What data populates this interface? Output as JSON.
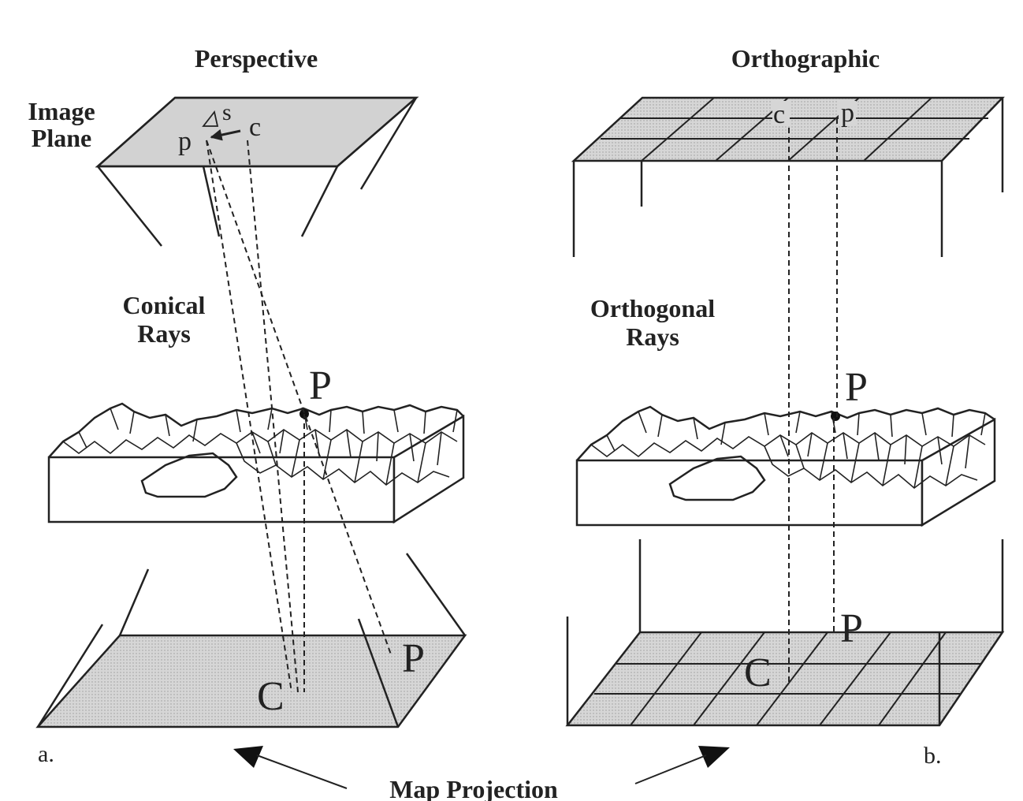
{
  "left_panel": {
    "title": "Perspective",
    "image_plane_label_1": "Image",
    "image_plane_label_2": "Plane",
    "rays_label_1": "Conical",
    "rays_label_2": "Rays",
    "image_point_p": "p",
    "image_point_c": "c",
    "image_point_s": "s",
    "ground_point_P": "P",
    "map_point_C": "C",
    "map_point_P": "P",
    "panel_letter": "a."
  },
  "right_panel": {
    "title": "Orthographic",
    "rays_label_1": "Orthogonal",
    "rays_label_2": "Rays",
    "image_point_c": "c",
    "image_point_p": "p",
    "ground_point_P": "P",
    "map_point_C": "C",
    "map_point_P": "P",
    "panel_letter": "b."
  },
  "footer": {
    "caption": "Map Projection"
  },
  "colors": {
    "plane_fill": "#d2d2d2",
    "line": "#222222"
  }
}
